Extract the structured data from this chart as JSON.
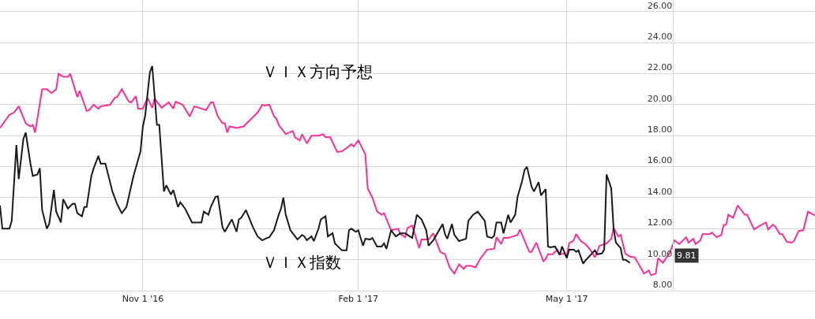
{
  "chart_data": {
    "type": "line",
    "xlim": [
      "2016-09-01",
      "2017-08-15"
    ],
    "ylim": [
      8,
      26.76
    ],
    "xticks": [
      {
        "value": "2016-11-01",
        "label": "Nov 1 '16"
      },
      {
        "value": "2017-02-01",
        "label": "Feb 1 '17"
      },
      {
        "value": "2017-05-01",
        "label": "May 1 '17"
      }
    ],
    "yticks": [
      {
        "value": 8,
        "label": "8.00"
      },
      {
        "value": 10,
        "label": "10.00"
      },
      {
        "value": 12,
        "label": "12.00"
      },
      {
        "value": 14,
        "label": "14.00"
      },
      {
        "value": 16,
        "label": "16.00"
      },
      {
        "value": 18,
        "label": "18.00"
      },
      {
        "value": 20,
        "label": "20.00"
      },
      {
        "value": 22,
        "label": "22.00"
      },
      {
        "value": 24,
        "label": "24.00"
      },
      {
        "value": 26,
        "label": "26.00"
      }
    ],
    "grid": true,
    "legend": false,
    "marker": "none",
    "line_style": "solid",
    "annotations": [
      "9.81"
    ],
    "series": [
      {
        "name": "ＶＩＸ方向予想",
        "color": "#ff2e97",
        "x": [
          "2016-09-01",
          "2016-09-05",
          "2016-09-07",
          "2016-09-09",
          "2016-09-12",
          "2016-09-14",
          "2016-09-15",
          "2016-09-16",
          "2016-09-19",
          "2016-09-21",
          "2016-09-23",
          "2016-09-25",
          "2016-09-26",
          "2016-09-28",
          "2016-09-30",
          "2016-10-01",
          "2016-10-04",
          "2016-10-05",
          "2016-10-08",
          "2016-10-09",
          "2016-10-11",
          "2016-10-13",
          "2016-10-14",
          "2016-10-18",
          "2016-10-20",
          "2016-10-21",
          "2016-10-23",
          "2016-10-26",
          "2016-10-27",
          "2016-10-29",
          "2016-10-30",
          "2016-11-01",
          "2016-11-03",
          "2016-11-05",
          "2016-11-06",
          "2016-11-09",
          "2016-11-12",
          "2016-11-14",
          "2016-11-15",
          "2016-11-18",
          "2016-11-21",
          "2016-11-23",
          "2016-11-28",
          "2016-11-30",
          "2016-12-01",
          "2016-12-03",
          "2016-12-05",
          "2016-12-06",
          "2016-12-07",
          "2016-12-08",
          "2016-12-11",
          "2016-12-14",
          "2016-12-18",
          "2016-12-20",
          "2016-12-22",
          "2016-12-23",
          "2016-12-25",
          "2016-12-27",
          "2016-12-28",
          "2016-12-29",
          "2017-01-01",
          "2017-01-04",
          "2017-01-05",
          "2017-01-07",
          "2017-01-08",
          "2017-01-10",
          "2017-01-12",
          "2017-01-15",
          "2017-01-17",
          "2017-01-18",
          "2017-01-20",
          "2017-01-23",
          "2017-01-25",
          "2017-01-27",
          "2017-01-29",
          "2017-01-30",
          "2017-02-01",
          "2017-02-04",
          "2017-02-05",
          "2017-02-07",
          "2017-02-09",
          "2017-02-11",
          "2017-02-12",
          "2017-02-15",
          "2017-02-18",
          "2017-02-19",
          "2017-02-21",
          "2017-02-22",
          "2017-02-24",
          "2017-02-27",
          "2017-02-28",
          "2017-03-03",
          "2017-03-05",
          "2017-03-08",
          "2017-03-10",
          "2017-03-12",
          "2017-03-14",
          "2017-03-16",
          "2017-03-18",
          "2017-03-19",
          "2017-03-21",
          "2017-03-23",
          "2017-03-25",
          "2017-03-28",
          "2017-03-31",
          "2017-04-01",
          "2017-04-03",
          "2017-04-04",
          "2017-04-06",
          "2017-04-10",
          "2017-04-11",
          "2017-04-15",
          "2017-04-16",
          "2017-04-18",
          "2017-04-21",
          "2017-04-22",
          "2017-04-23",
          "2017-04-25",
          "2017-04-27",
          "2017-04-28",
          "2017-04-30",
          "2017-05-01",
          "2017-05-02",
          "2017-05-04",
          "2017-05-05",
          "2017-05-07",
          "2017-05-09",
          "2017-05-11",
          "2017-05-13",
          "2017-05-15",
          "2017-05-16",
          "2017-05-18",
          "2017-05-20",
          "2017-05-21",
          "2017-05-23",
          "2017-05-24",
          "2017-05-26",
          "2017-05-28",
          "2017-05-30",
          "2017-05-31",
          "2017-06-03",
          "2017-06-05",
          "2017-06-06",
          "2017-06-08",
          "2017-06-09",
          "2017-06-11",
          "2017-06-14",
          "2017-06-16",
          "2017-06-18",
          "2017-06-21",
          "2017-06-22",
          "2017-06-24",
          "2017-06-25",
          "2017-06-27",
          "2017-06-28",
          "2017-07-01",
          "2017-07-02",
          "2017-07-04",
          "2017-07-06",
          "2017-07-07",
          "2017-07-08",
          "2017-07-09",
          "2017-07-11",
          "2017-07-13",
          "2017-07-14",
          "2017-07-16",
          "2017-07-17",
          "2017-07-20",
          "2017-07-22",
          "2017-07-25",
          "2017-07-26",
          "2017-07-28",
          "2017-07-29",
          "2017-07-31",
          "2017-08-01",
          "2017-08-03",
          "2017-08-05",
          "2017-08-06",
          "2017-08-08",
          "2017-08-10",
          "2017-08-12",
          "2017-08-15"
        ],
        "values": [
          18.5,
          19.35,
          19.5,
          19.9,
          18.8,
          18.6,
          18.7,
          18.2,
          21.0,
          21.0,
          20.75,
          21.0,
          22.0,
          21.8,
          21.8,
          22.0,
          20.5,
          20.9,
          19.6,
          19.65,
          20.0,
          19.75,
          19.9,
          20.0,
          20.45,
          20.5,
          21.0,
          20.2,
          20.15,
          20.55,
          19.75,
          19.75,
          20.45,
          19.8,
          20.4,
          19.8,
          20.15,
          19.75,
          20.2,
          20.0,
          19.25,
          19.9,
          19.65,
          20.15,
          20.15,
          19.25,
          18.8,
          18.8,
          18.2,
          18.6,
          18.5,
          18.6,
          19.2,
          19.5,
          20.0,
          19.95,
          20.0,
          19.25,
          19.1,
          18.7,
          18.1,
          18.3,
          17.9,
          17.7,
          18.1,
          17.5,
          18.0,
          18.0,
          18.1,
          17.9,
          17.9,
          16.95,
          17.0,
          17.2,
          17.45,
          17.3,
          17.7,
          16.8,
          14.6,
          14.0,
          13.1,
          12.9,
          13.0,
          11.9,
          12.0,
          11.65,
          11.45,
          12.05,
          12.2,
          10.75,
          11.3,
          11.3,
          11.7,
          10.5,
          10.35,
          9.5,
          9.1,
          9.7,
          9.4,
          9.6,
          9.6,
          9.5,
          10.05,
          10.65,
          10.7,
          11.45,
          11.0,
          11.4,
          11.4,
          11.6,
          11.95,
          10.5,
          10.5,
          11.1,
          9.9,
          10.05,
          10.35,
          10.35,
          10.65,
          10.35,
          10.4,
          10.2,
          11.05,
          11.25,
          11.65,
          11.2,
          11.0,
          10.65,
          10.15,
          10.9,
          10.95,
          11.05,
          11.35,
          12.05,
          11.5,
          11.6,
          10.4,
          10.2,
          10.15,
          9.9,
          9.1,
          9.3,
          9.0,
          9.1,
          10.1,
          9.8,
          10.45,
          11.25,
          11.0,
          11.45,
          11.1,
          11.35,
          11.0,
          11.25,
          11.65,
          11.65,
          11.75,
          11.45,
          11.6,
          12.25,
          12.25,
          12.9,
          12.7,
          13.5,
          13.3,
          12.9,
          12.9,
          11.95,
          12.15,
          12.4,
          11.95,
          12.25,
          12.15,
          11.65,
          11.65,
          11.15,
          11.1,
          11.2,
          11.85,
          11.9,
          13.1,
          12.85
        ]
      },
      {
        "name": "ＶＩＸ指数",
        "color": "#1a1a1a",
        "x": [
          "2016-09-01",
          "2016-09-02",
          "2016-09-05",
          "2016-09-06",
          "2016-09-08",
          "2016-09-09",
          "2016-09-11",
          "2016-09-12",
          "2016-09-14",
          "2016-09-15",
          "2016-09-17",
          "2016-09-18",
          "2016-09-19",
          "2016-09-21",
          "2016-09-22",
          "2016-09-24",
          "2016-09-25",
          "2016-09-27",
          "2016-09-28",
          "2016-09-30",
          "2016-10-02",
          "2016-10-03",
          "2016-10-04",
          "2016-10-06",
          "2016-10-07",
          "2016-10-08",
          "2016-10-10",
          "2016-10-11",
          "2016-10-13",
          "2016-10-14",
          "2016-10-16",
          "2016-10-19",
          "2016-10-21",
          "2016-10-23",
          "2016-10-25",
          "2016-10-28",
          "2016-10-31",
          "2016-11-01",
          "2016-11-02",
          "2016-11-04",
          "2016-11-05",
          "2016-11-07",
          "2016-11-08",
          "2016-11-10",
          "2016-11-11",
          "2016-11-13",
          "2016-11-14",
          "2016-11-16",
          "2016-11-17",
          "2016-11-19",
          "2016-11-22",
          "2016-11-26",
          "2016-11-27",
          "2016-11-29",
          "2016-11-30",
          "2016-12-02",
          "2016-12-03",
          "2016-12-05",
          "2016-12-06",
          "2016-12-09",
          "2016-12-11",
          "2016-12-12",
          "2016-12-13",
          "2016-12-15",
          "2016-12-18",
          "2016-12-20",
          "2016-12-22",
          "2016-12-24",
          "2016-12-25",
          "2016-12-27",
          "2016-12-29",
          "2016-12-30",
          "2016-12-31",
          "2017-01-01",
          "2017-01-03",
          "2017-01-04",
          "2017-01-06",
          "2017-01-08",
          "2017-01-09",
          "2017-01-10",
          "2017-01-12",
          "2017-01-13",
          "2017-01-15",
          "2017-01-16",
          "2017-01-18",
          "2017-01-19",
          "2017-01-21",
          "2017-01-22",
          "2017-01-25",
          "2017-01-27",
          "2017-01-28",
          "2017-01-29",
          "2017-01-31",
          "2017-02-01",
          "2017-02-03",
          "2017-02-04",
          "2017-02-06",
          "2017-02-07",
          "2017-02-09",
          "2017-02-11",
          "2017-02-12",
          "2017-02-13",
          "2017-02-15",
          "2017-02-17",
          "2017-02-19",
          "2017-02-21",
          "2017-02-22",
          "2017-02-24",
          "2017-02-26",
          "2017-02-28",
          "2017-03-02",
          "2017-03-03",
          "2017-03-05",
          "2017-03-09",
          "2017-03-10",
          "2017-03-11",
          "2017-03-13",
          "2017-03-14",
          "2017-03-16",
          "2017-03-19",
          "2017-03-20",
          "2017-03-22",
          "2017-03-24",
          "2017-03-25",
          "2017-03-27",
          "2017-03-28",
          "2017-03-30",
          "2017-03-31",
          "2017-04-01",
          "2017-04-03",
          "2017-04-04",
          "2017-04-06",
          "2017-04-07",
          "2017-04-09",
          "2017-04-10",
          "2017-04-12",
          "2017-04-13",
          "2017-04-14",
          "2017-04-16",
          "2017-04-17",
          "2017-04-19",
          "2017-04-20",
          "2017-04-22",
          "2017-04-23",
          "2017-04-24",
          "2017-04-26",
          "2017-04-28",
          "2017-04-29",
          "2017-05-01",
          "2017-05-02",
          "2017-05-04",
          "2017-05-05",
          "2017-05-06",
          "2017-05-08",
          "2017-05-09",
          "2017-05-13",
          "2017-05-14",
          "2017-05-16",
          "2017-05-17",
          "2017-05-18",
          "2017-05-20",
          "2017-05-21",
          "2017-05-22",
          "2017-05-24",
          "2017-05-25",
          "2017-05-26",
          "2017-05-28"
        ],
        "values": [
          13.5,
          12.0,
          12.0,
          12.5,
          17.4,
          15.2,
          17.8,
          18.2,
          16.2,
          15.4,
          15.5,
          15.9,
          13.2,
          12.0,
          12.3,
          14.5,
          13.1,
          12.4,
          13.9,
          13.3,
          13.6,
          13.6,
          13.0,
          12.8,
          13.4,
          13.4,
          15.4,
          15.9,
          16.7,
          16.2,
          16.2,
          14.4,
          13.6,
          13.0,
          13.4,
          15.4,
          17.0,
          18.6,
          19.3,
          22.1,
          22.5,
          18.7,
          18.7,
          14.4,
          14.8,
          14.2,
          14.5,
          13.4,
          13.7,
          13.3,
          12.4,
          12.4,
          13.1,
          12.9,
          13.4,
          14.05,
          14.1,
          12.1,
          11.8,
          12.6,
          11.8,
          12.6,
          12.7,
          13.2,
          12.1,
          11.5,
          11.25,
          11.4,
          11.45,
          11.9,
          12.9,
          13.3,
          14.0,
          12.9,
          11.9,
          11.7,
          11.3,
          11.6,
          11.5,
          11.25,
          11.5,
          11.2,
          12.0,
          12.6,
          12.8,
          11.5,
          11.7,
          11.05,
          10.6,
          10.6,
          11.9,
          12.0,
          11.8,
          11.9,
          10.9,
          11.35,
          11.3,
          11.4,
          10.85,
          10.85,
          11.05,
          10.7,
          11.9,
          11.5,
          11.7,
          11.7,
          11.6,
          11.4,
          12.9,
          12.6,
          11.9,
          10.9,
          11.25,
          12.3,
          11.65,
          11.35,
          12.3,
          11.6,
          11.2,
          11.35,
          12.5,
          12.9,
          13.1,
          12.9,
          12.5,
          11.5,
          11.4,
          11.55,
          12.4,
          12.4,
          11.7,
          12.9,
          12.4,
          12.9,
          14.05,
          15.1,
          15.8,
          16.0,
          14.7,
          14.4,
          15.0,
          14.15,
          14.55,
          10.85,
          10.8,
          10.85,
          10.3,
          10.85,
          10.1,
          10.65,
          10.65,
          10.5,
          10.6,
          9.75,
          9.95,
          10.6,
          10.35,
          10.4,
          10.65,
          15.5,
          14.6,
          12.0,
          11.1,
          10.75,
          10.0,
          10.0,
          9.8
        ]
      }
    ]
  }
}
